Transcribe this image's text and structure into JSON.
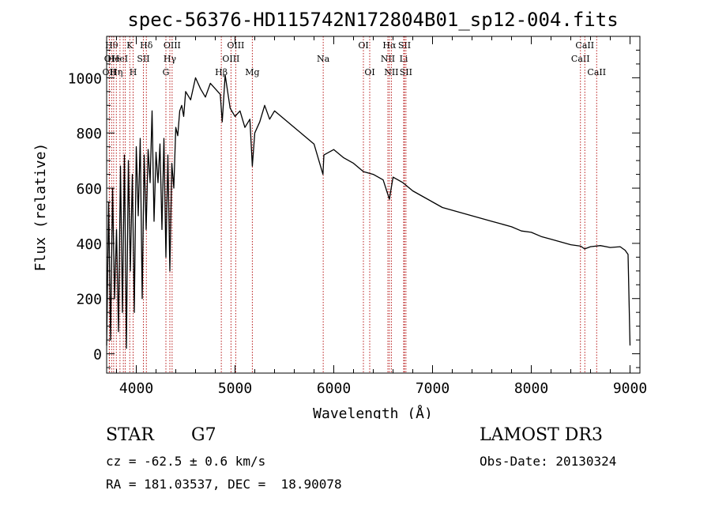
{
  "page_title": "spec-56376-HD115742N172804B01_sp12-004.fits",
  "info": {
    "object_class": "STAR",
    "subclass": "G7",
    "survey": "LAMOST DR3",
    "redshift": "cz = -62.5 ± 0.6 km/s",
    "obs_date": "Obs-Date: 20130324",
    "coords": "RA = 181.03537, DEC =  18.90078"
  },
  "chart_data": {
    "type": "line",
    "title": "spec-56376-HD115742N172804B01_sp12-004.fits",
    "xlabel": "Wavelength (Å)",
    "ylabel": "Flux (relative)",
    "xlim": [
      3700,
      9100
    ],
    "ylim": [
      -70,
      1150
    ],
    "xticks": [
      4000,
      5000,
      6000,
      7000,
      8000,
      9000
    ],
    "yticks": [
      0,
      200,
      400,
      600,
      800,
      1000
    ],
    "grid": false,
    "series": [
      {
        "name": "flux",
        "x": [
          3700,
          3720,
          3740,
          3760,
          3780,
          3800,
          3820,
          3840,
          3860,
          3880,
          3900,
          3920,
          3940,
          3960,
          3980,
          4000,
          4020,
          4040,
          4060,
          4080,
          4100,
          4120,
          4140,
          4160,
          4180,
          4200,
          4220,
          4240,
          4260,
          4280,
          4300,
          4320,
          4340,
          4360,
          4380,
          4400,
          4420,
          4440,
          4460,
          4480,
          4500,
          4550,
          4600,
          4650,
          4700,
          4750,
          4800,
          4850,
          4870,
          4900,
          4950,
          5000,
          5050,
          5100,
          5150,
          5175,
          5200,
          5250,
          5300,
          5350,
          5400,
          5500,
          5600,
          5700,
          5800,
          5890,
          5900,
          6000,
          6100,
          6200,
          6300,
          6400,
          6500,
          6563,
          6600,
          6700,
          6800,
          6900,
          7000,
          7100,
          7200,
          7300,
          7400,
          7500,
          7600,
          7700,
          7800,
          7900,
          8000,
          8100,
          8200,
          8300,
          8400,
          8500,
          8540,
          8600,
          8700,
          8800,
          8900,
          8950,
          8980,
          9000
        ],
        "y": [
          30,
          550,
          50,
          600,
          200,
          450,
          80,
          680,
          150,
          720,
          20,
          700,
          300,
          650,
          150,
          750,
          500,
          780,
          200,
          720,
          450,
          740,
          620,
          880,
          480,
          730,
          620,
          760,
          450,
          780,
          350,
          720,
          300,
          690,
          600,
          820,
          790,
          880,
          900,
          860,
          950,
          920,
          1000,
          960,
          930,
          980,
          960,
          940,
          840,
          1010,
          890,
          860,
          880,
          820,
          850,
          680,
          800,
          840,
          900,
          850,
          880,
          850,
          820,
          790,
          760,
          650,
          720,
          740,
          710,
          690,
          660,
          650,
          630,
          560,
          640,
          620,
          590,
          570,
          550,
          530,
          520,
          510,
          500,
          490,
          480,
          470,
          460,
          445,
          440,
          425,
          415,
          405,
          395,
          390,
          380,
          388,
          392,
          385,
          388,
          375,
          360,
          30
        ]
      }
    ],
    "lines": [
      {
        "wave": 3727,
        "label": "OII",
        "row": 2
      },
      {
        "wave": 3727,
        "label": "OI",
        "row": 1
      },
      {
        "wave": 3750,
        "label": "Hθ",
        "row": 0
      },
      {
        "wave": 3771,
        "label": "He",
        "row": 1
      },
      {
        "wave": 3798,
        "label": "Hη",
        "row": 2
      },
      {
        "wave": 3835,
        "label": "HeI",
        "row": 1
      },
      {
        "wave": 3869,
        "label": "",
        "row": 0
      },
      {
        "wave": 3889,
        "label": "",
        "row": 0
      },
      {
        "wave": 3934,
        "label": "K",
        "row": 0
      },
      {
        "wave": 3968,
        "label": "H",
        "row": 2
      },
      {
        "wave": 4072,
        "label": "SII",
        "row": 1
      },
      {
        "wave": 4102,
        "label": "Hδ",
        "row": 0
      },
      {
        "wave": 4300,
        "label": "G",
        "row": 2
      },
      {
        "wave": 4340,
        "label": "Hγ",
        "row": 1
      },
      {
        "wave": 4363,
        "label": "OIII",
        "row": 0
      },
      {
        "wave": 4861,
        "label": "Hβ",
        "row": 2
      },
      {
        "wave": 4959,
        "label": "OIII",
        "row": 1
      },
      {
        "wave": 5007,
        "label": "OIII",
        "row": 0
      },
      {
        "wave": 5175,
        "label": "Mg",
        "row": 2
      },
      {
        "wave": 5893,
        "label": "Na",
        "row": 1
      },
      {
        "wave": 6300,
        "label": "OI",
        "row": 0
      },
      {
        "wave": 6364,
        "label": "OI",
        "row": 2
      },
      {
        "wave": 6548,
        "label": "NII",
        "row": 1
      },
      {
        "wave": 6563,
        "label": "Hα",
        "row": 0
      },
      {
        "wave": 6583,
        "label": "NII",
        "row": 2
      },
      {
        "wave": 6708,
        "label": "Li",
        "row": 1
      },
      {
        "wave": 6716,
        "label": "SII",
        "row": 0
      },
      {
        "wave": 6731,
        "label": "SII",
        "row": 2
      },
      {
        "wave": 8498,
        "label": "CaII",
        "row": 1
      },
      {
        "wave": 8542,
        "label": "CaII",
        "row": 0
      },
      {
        "wave": 8662,
        "label": "CaII",
        "row": 2
      }
    ]
  }
}
